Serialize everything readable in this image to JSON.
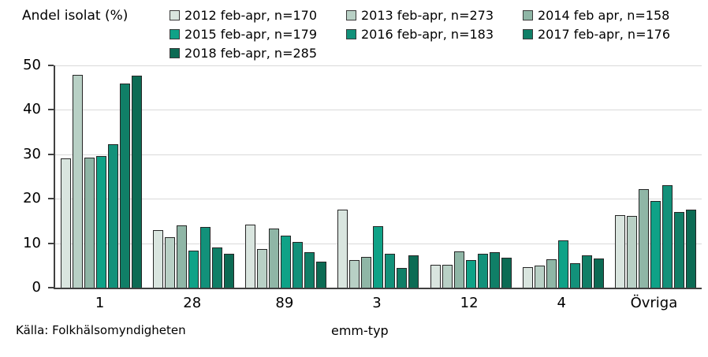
{
  "title": "Andel isolat (%)",
  "source": "Källa: Folkhälsomyndigheten",
  "xlabel": "emm-typ",
  "chart_data": {
    "type": "bar",
    "title": "Andel isolat (%)",
    "xlabel": "emm-typ",
    "ylabel": "Andel isolat (%)",
    "ylim": [
      0,
      50
    ],
    "yticks": [
      0,
      10,
      20,
      30,
      40,
      50
    ],
    "grid": true,
    "legend_position": "top",
    "categories": [
      "1",
      "28",
      "89",
      "3",
      "12",
      "4",
      "Övriga"
    ],
    "series": [
      {
        "name": "2012 feb-apr, n=170",
        "color": "#d9e5df",
        "values": [
          29.0,
          13.0,
          14.2,
          17.5,
          5.2,
          4.6,
          16.4
        ]
      },
      {
        "name": "2013 feb-apr, n=273",
        "color": "#b8d0c5",
        "values": [
          47.8,
          11.3,
          8.7,
          6.2,
          5.1,
          4.9,
          16.1
        ]
      },
      {
        "name": "2014 feb apr, n=158",
        "color": "#8fb6a6",
        "values": [
          29.3,
          14.0,
          13.3,
          6.9,
          8.2,
          6.3,
          22.2
        ]
      },
      {
        "name": "2015 feb-apr, n=179",
        "color": "#0fa287",
        "values": [
          29.7,
          8.3,
          11.7,
          13.8,
          6.2,
          10.6,
          19.5
        ]
      },
      {
        "name": "2016 feb-apr, n=183",
        "color": "#12917a",
        "values": [
          32.3,
          13.6,
          10.3,
          7.7,
          7.7,
          5.5,
          23.0
        ]
      },
      {
        "name": "2017 feb-apr, n=176",
        "color": "#107f67",
        "values": [
          46.0,
          9.0,
          8.0,
          4.4,
          7.9,
          7.2,
          17.1
        ]
      },
      {
        "name": "2018 feb-apr, n=285",
        "color": "#0c6b54",
        "values": [
          47.7,
          7.6,
          5.9,
          7.3,
          6.8,
          6.6,
          17.5
        ]
      }
    ]
  }
}
